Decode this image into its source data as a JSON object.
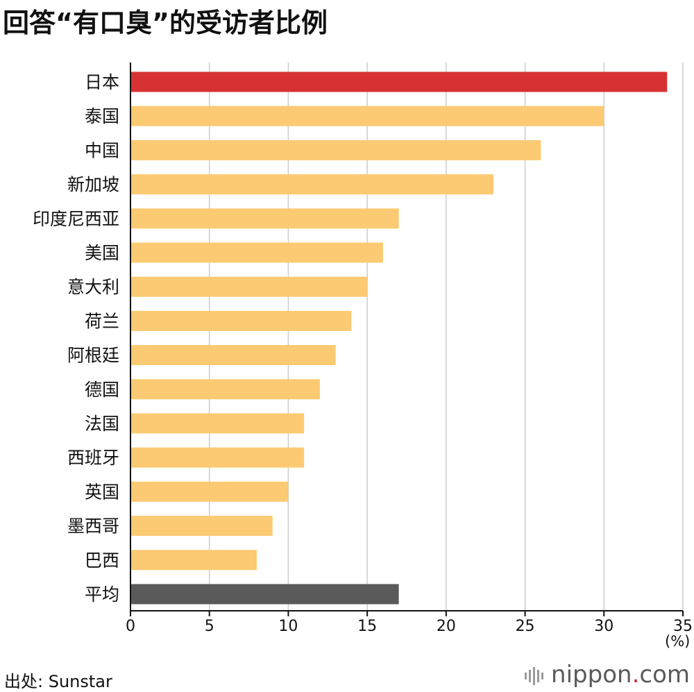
{
  "title": "回答“有口臭”的受访者比例",
  "source": "出处: Sunstar",
  "logo": {
    "name": "nippon",
    "dot": ".",
    "suffix": "com"
  },
  "unit": "(%)",
  "colors": {
    "highlight": "#d63232",
    "normal": "#fcca72",
    "average": "#5a5a5a",
    "grid": "#cccccc",
    "axis": "#111111"
  },
  "chart_data": {
    "type": "bar",
    "orientation": "horizontal",
    "categories": [
      "日本",
      "泰国",
      "中国",
      "新加坡",
      "印度尼西亚",
      "美国",
      "意大利",
      "荷兰",
      "阿根廷",
      "德国",
      "法国",
      "西班牙",
      "英国",
      "墨西哥",
      "巴西",
      "平均"
    ],
    "values": [
      34,
      30,
      26,
      23,
      17,
      16,
      15,
      14,
      13,
      12,
      11,
      11,
      10,
      9,
      8,
      17
    ],
    "bar_colors": [
      "highlight",
      "normal",
      "normal",
      "normal",
      "normal",
      "normal",
      "normal",
      "normal",
      "normal",
      "normal",
      "normal",
      "normal",
      "normal",
      "normal",
      "normal",
      "average"
    ],
    "xlim": [
      0,
      35
    ],
    "xticks": [
      0,
      5,
      10,
      15,
      20,
      25,
      30,
      35
    ],
    "grid": true
  }
}
